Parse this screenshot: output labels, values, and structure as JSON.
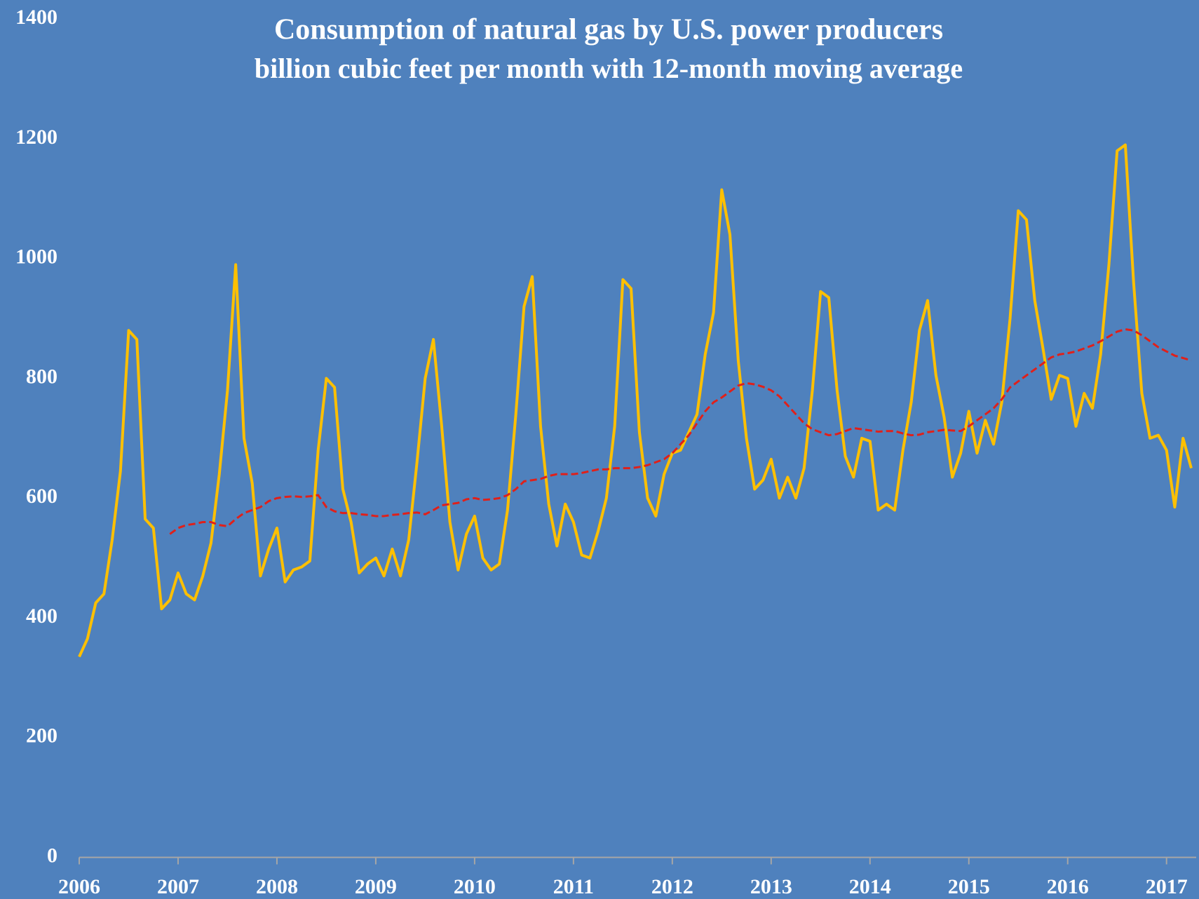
{
  "chart_data": {
    "type": "line",
    "title": "Consumption of  natural gas by U.S. power producers",
    "subtitle": "billion cubic feet per month with 12-month moving average",
    "x": [
      2006,
      2006.083,
      2006.167,
      2006.25,
      2006.333,
      2006.417,
      2006.5,
      2006.583,
      2006.667,
      2006.75,
      2006.833,
      2006.917,
      2007,
      2007.083,
      2007.167,
      2007.25,
      2007.333,
      2007.417,
      2007.5,
      2007.583,
      2007.667,
      2007.75,
      2007.833,
      2007.917,
      2008,
      2008.083,
      2008.167,
      2008.25,
      2008.333,
      2008.417,
      2008.5,
      2008.583,
      2008.667,
      2008.75,
      2008.833,
      2008.917,
      2009,
      2009.083,
      2009.167,
      2009.25,
      2009.333,
      2009.417,
      2009.5,
      2009.583,
      2009.667,
      2009.75,
      2009.833,
      2009.917,
      2010,
      2010.083,
      2010.167,
      2010.25,
      2010.333,
      2010.417,
      2010.5,
      2010.583,
      2010.667,
      2010.75,
      2010.833,
      2010.917,
      2011,
      2011.083,
      2011.167,
      2011.25,
      2011.333,
      2011.417,
      2011.5,
      2011.583,
      2011.667,
      2011.75,
      2011.833,
      2011.917,
      2012,
      2012.083,
      2012.167,
      2012.25,
      2012.333,
      2012.417,
      2012.5,
      2012.583,
      2012.667,
      2012.75,
      2012.833,
      2012.917,
      2013,
      2013.083,
      2013.167,
      2013.25,
      2013.333,
      2013.417,
      2013.5,
      2013.583,
      2013.667,
      2013.75,
      2013.833,
      2013.917,
      2014,
      2014.083,
      2014.167,
      2014.25,
      2014.333,
      2014.417,
      2014.5,
      2014.583,
      2014.667,
      2014.75,
      2014.833,
      2014.917,
      2015,
      2015.083,
      2015.167,
      2015.25,
      2015.333,
      2015.417,
      2015.5,
      2015.583,
      2015.667,
      2015.75,
      2015.833,
      2015.917,
      2016,
      2016.083,
      2016.167,
      2016.25,
      2016.333,
      2016.417,
      2016.5,
      2016.583,
      2016.667,
      2016.75,
      2016.833,
      2016.917,
      2017,
      2017.083,
      2017.167,
      2017.25
    ],
    "series": [
      {
        "name": "monthly",
        "color": "#ffc000",
        "dashed": false,
        "values": [
          335,
          365,
          425,
          440,
          530,
          645,
          880,
          865,
          565,
          550,
          415,
          430,
          475,
          440,
          430,
          470,
          525,
          640,
          780,
          990,
          700,
          625,
          470,
          515,
          550,
          460,
          480,
          485,
          495,
          680,
          800,
          785,
          615,
          560,
          475,
          490,
          500,
          470,
          515,
          470,
          530,
          660,
          800,
          865,
          720,
          560,
          480,
          540,
          570,
          500,
          480,
          490,
          580,
          740,
          920,
          970,
          720,
          590,
          520,
          590,
          560,
          505,
          500,
          545,
          600,
          720,
          965,
          950,
          710,
          600,
          570,
          640,
          675,
          680,
          710,
          740,
          840,
          910,
          1115,
          1040,
          830,
          700,
          615,
          630,
          665,
          600,
          635,
          600,
          650,
          780,
          945,
          935,
          780,
          670,
          635,
          700,
          695,
          580,
          590,
          580,
          680,
          760,
          880,
          930,
          805,
          735,
          635,
          675,
          745,
          675,
          730,
          690,
          760,
          900,
          1080,
          1065,
          930,
          850,
          765,
          805,
          800,
          720,
          775,
          750,
          840,
          990,
          1180,
          1190,
          960,
          775,
          700,
          705,
          680,
          585,
          700,
          650
        ]
      },
      {
        "name": "12-month moving average",
        "color": "#e0201a",
        "dashed": true,
        "values": [
          null,
          null,
          null,
          null,
          null,
          null,
          null,
          null,
          null,
          null,
          null,
          540,
          550,
          555,
          557,
          560,
          560,
          555,
          553,
          565,
          575,
          580,
          585,
          595,
          600,
          602,
          603,
          602,
          603,
          605,
          585,
          578,
          575,
          575,
          573,
          572,
          570,
          570,
          572,
          573,
          575,
          576,
          573,
          580,
          588,
          590,
          592,
          598,
          600,
          597,
          598,
          600,
          605,
          615,
          628,
          630,
          632,
          637,
          640,
          640,
          640,
          642,
          645,
          648,
          648,
          650,
          650,
          650,
          652,
          655,
          660,
          665,
          675,
          690,
          705,
          725,
          745,
          760,
          768,
          778,
          788,
          792,
          790,
          786,
          780,
          770,
          755,
          740,
          725,
          715,
          710,
          705,
          707,
          712,
          717,
          715,
          713,
          711,
          712,
          712,
          708,
          705,
          706,
          710,
          712,
          714,
          713,
          712,
          720,
          730,
          740,
          750,
          765,
          785,
          795,
          805,
          815,
          825,
          835,
          840,
          842,
          845,
          850,
          855,
          862,
          870,
          878,
          882,
          880,
          872,
          862,
          852,
          845,
          838,
          834,
          830
        ]
      }
    ],
    "xlim": [
      2006,
      2017.3
    ],
    "xticks": [
      2006,
      2007,
      2008,
      2009,
      2010,
      2011,
      2012,
      2013,
      2014,
      2015,
      2016,
      2017
    ],
    "ylim": [
      0,
      1400
    ],
    "yticks": [
      0,
      200,
      400,
      600,
      800,
      1000,
      1200,
      1400
    ],
    "background": "#4f81bd",
    "grid": false
  }
}
